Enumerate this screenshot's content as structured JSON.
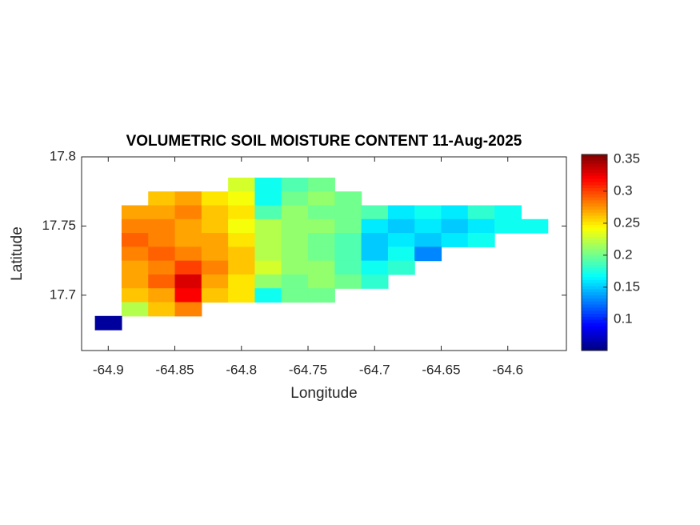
{
  "chart_data": {
    "type": "heatmap",
    "title": "VOLUMETRIC SOIL MOISTURE CONTENT 11-Aug-2025",
    "x_label": "Longitude",
    "y_label": "Latitude",
    "x": [
      -64.9,
      -64.88,
      -64.86,
      -64.84,
      -64.82,
      -64.8,
      -64.78,
      -64.76,
      -64.74,
      -64.72,
      -64.7,
      -64.68,
      -64.66,
      -64.64,
      -64.62,
      -64.6,
      -64.58,
      -64.56
    ],
    "y": [
      17.78,
      17.77,
      17.76,
      17.75,
      17.74,
      17.73,
      17.72,
      17.71,
      17.7,
      17.69,
      17.68
    ],
    "z": [
      [
        null,
        null,
        null,
        null,
        null,
        0.23,
        0.17,
        0.19,
        0.2,
        null,
        null,
        null,
        null,
        null,
        null,
        null,
        null,
        null
      ],
      [
        null,
        null,
        0.26,
        0.27,
        0.25,
        0.24,
        0.17,
        0.2,
        0.21,
        0.2,
        null,
        null,
        null,
        null,
        null,
        null,
        null,
        null
      ],
      [
        null,
        0.27,
        0.27,
        0.28,
        0.26,
        0.25,
        0.19,
        0.21,
        0.2,
        0.2,
        0.19,
        0.16,
        0.17,
        0.16,
        0.18,
        0.17,
        null,
        null
      ],
      [
        null,
        0.28,
        0.28,
        0.27,
        0.26,
        0.24,
        0.22,
        0.21,
        0.21,
        0.2,
        0.16,
        0.15,
        0.16,
        0.15,
        0.16,
        0.17,
        0.17,
        null
      ],
      [
        null,
        0.29,
        0.28,
        0.27,
        0.27,
        0.25,
        0.22,
        0.21,
        0.2,
        0.19,
        0.15,
        0.16,
        0.15,
        0.16,
        0.17,
        null,
        null,
        null
      ],
      [
        null,
        0.28,
        0.29,
        0.28,
        0.27,
        0.26,
        0.22,
        0.21,
        0.2,
        0.19,
        0.15,
        0.17,
        0.13,
        null,
        null,
        null,
        null,
        null
      ],
      [
        null,
        0.27,
        0.28,
        0.3,
        0.28,
        0.26,
        0.23,
        0.21,
        0.21,
        0.19,
        0.17,
        0.18,
        null,
        null,
        null,
        null,
        null,
        null
      ],
      [
        null,
        0.27,
        0.29,
        0.33,
        0.27,
        0.25,
        0.21,
        0.2,
        0.21,
        0.2,
        0.18,
        null,
        null,
        null,
        null,
        null,
        null,
        null
      ],
      [
        null,
        0.26,
        0.27,
        0.32,
        0.26,
        0.25,
        0.17,
        0.2,
        0.2,
        null,
        null,
        null,
        null,
        null,
        null,
        null,
        null,
        null
      ],
      [
        null,
        0.22,
        0.26,
        0.28,
        null,
        null,
        null,
        null,
        null,
        null,
        null,
        null,
        null,
        null,
        null,
        null,
        null,
        null
      ],
      [
        0.06,
        null,
        null,
        null,
        null,
        null,
        null,
        null,
        null,
        null,
        null,
        null,
        null,
        null,
        null,
        null,
        null,
        null
      ]
    ],
    "colormap": "jet",
    "xlim": [
      -64.92,
      -64.556
    ],
    "ylim": [
      17.66,
      17.8
    ],
    "xticks": [
      -64.9,
      -64.85,
      -64.8,
      -64.75,
      -64.7,
      -64.65,
      -64.6
    ],
    "yticks": [
      17.7,
      17.75,
      17.8
    ],
    "clim": [
      0.051,
      0.3575
    ],
    "cticks": [
      0.1,
      0.15,
      0.2,
      0.25,
      0.3,
      0.35
    ]
  }
}
